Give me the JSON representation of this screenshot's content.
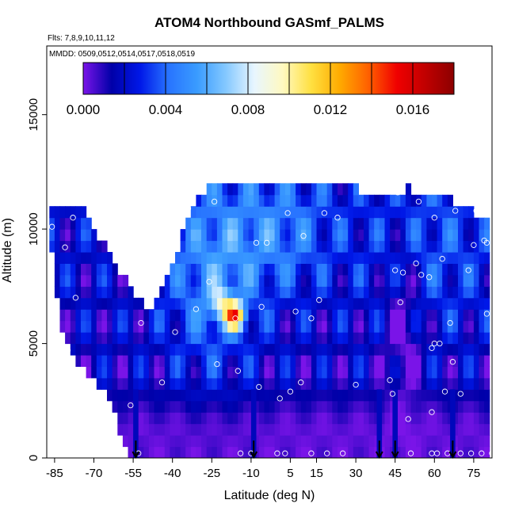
{
  "chart_data": {
    "type": "heatmap",
    "title": "ATOM4 Northbound GASmf_PALMS",
    "flights_label": "Flts: 7,8,9,10,11,12",
    "dates_label": "MMDD: 0509,0512,0514,0517,0518,0519",
    "xlabel": "Latitude (deg N)",
    "ylabel": "Altitude (m)",
    "xlim": [
      -88,
      82
    ],
    "ylim": [
      0,
      18000
    ],
    "x_ticks": [
      -85,
      -70,
      -55,
      -40,
      -25,
      -10,
      5,
      15,
      30,
      45,
      60,
      75
    ],
    "x_tick_labels": [
      "-85",
      "-70",
      "-55",
      "-40",
      "-25",
      "-10",
      "5",
      "15",
      "30",
      "45",
      "60",
      "75"
    ],
    "y_ticks": [
      0,
      5000,
      10000,
      15000
    ],
    "y_tick_labels": [
      "0",
      "5000",
      "10000",
      "15000"
    ],
    "colorbar": {
      "range": [
        0,
        0.018
      ],
      "ticks": [
        0,
        0.004,
        0.008,
        0.012,
        0.016
      ],
      "tick_labels": [
        "0.000",
        "0.004",
        "0.008",
        "0.012",
        "0.016"
      ],
      "colors": [
        "#7a14e8",
        "#0000a8",
        "#0018e8",
        "#2874ff",
        "#3a9cff",
        "#84c8ff",
        "#e8f6ff",
        "#fff9c0",
        "#ffe040",
        "#ffaa00",
        "#ff6000",
        "#f00000",
        "#c00000",
        "#8c0000"
      ]
    },
    "column_lat_step": 2,
    "alt_bins": [
      250,
      750,
      1250,
      1750,
      2250,
      2750,
      3250,
      3750,
      4250,
      4750,
      5250,
      5750,
      6250,
      6750,
      7250,
      7750,
      8250,
      8750,
      9250,
      9750,
      10250,
      10750,
      11250,
      11750
    ],
    "profile_tops": [
      [
        -86,
        10500
      ],
      [
        -80,
        10500
      ],
      [
        -76,
        10500
      ],
      [
        -74,
        10500
      ],
      [
        -70,
        9800
      ],
      [
        -66,
        9000
      ],
      [
        -62,
        8300
      ],
      [
        -58,
        7500
      ],
      [
        -54,
        6800
      ],
      [
        -50,
        6200
      ],
      [
        -44,
        7000
      ],
      [
        -40,
        8200
      ],
      [
        -36,
        9500
      ],
      [
        -30,
        11000
      ],
      [
        -24,
        11800
      ],
      [
        -10,
        11800
      ],
      [
        0,
        11800
      ],
      [
        10,
        11800
      ],
      [
        20,
        11800
      ],
      [
        30,
        11500
      ],
      [
        40,
        11300
      ],
      [
        50,
        11500
      ],
      [
        60,
        11300
      ],
      [
        68,
        10900
      ],
      [
        74,
        10700
      ],
      [
        80,
        10000
      ]
    ],
    "profile_bottoms": [
      [
        -86,
        9500
      ],
      [
        -84,
        7200
      ],
      [
        -82,
        6000
      ],
      [
        -80,
        5200
      ],
      [
        -76,
        4500
      ],
      [
        -72,
        4000
      ],
      [
        -68,
        3500
      ],
      [
        -64,
        3000
      ],
      [
        -60,
        1500
      ],
      [
        -58,
        900
      ],
      [
        -56,
        0
      ],
      [
        -40,
        0
      ],
      [
        20,
        0
      ],
      [
        60,
        0
      ],
      [
        80,
        0
      ]
    ],
    "vertical_profiles_lat": [
      -54,
      -9,
      39,
      45,
      67
    ],
    "points": [
      [
        -86,
        10100
      ],
      [
        -81,
        9200
      ],
      [
        -78,
        10500
      ],
      [
        -80,
        4700
      ],
      [
        -77,
        7000
      ],
      [
        -56,
        2300
      ],
      [
        -53,
        200
      ],
      [
        -52,
        5900
      ],
      [
        -51,
        8500
      ],
      [
        -44,
        3300
      ],
      [
        -43,
        10000
      ],
      [
        -40,
        10300
      ],
      [
        -39,
        5500
      ],
      [
        -34,
        10900
      ],
      [
        -31,
        6500
      ],
      [
        -26,
        7700
      ],
      [
        -24,
        11200
      ],
      [
        -23,
        4100
      ],
      [
        -16,
        6100
      ],
      [
        -15,
        3800
      ],
      [
        -14,
        200
      ],
      [
        -10,
        200
      ],
      [
        -8,
        9400
      ],
      [
        -7,
        3100
      ],
      [
        -6,
        6600
      ],
      [
        -4,
        9400
      ],
      [
        0,
        200
      ],
      [
        1,
        2600
      ],
      [
        3,
        200
      ],
      [
        4,
        10700
      ],
      [
        5,
        2900
      ],
      [
        7,
        6400
      ],
      [
        9,
        3300
      ],
      [
        10,
        9700
      ],
      [
        13,
        6100
      ],
      [
        13,
        200
      ],
      [
        16,
        6900
      ],
      [
        18,
        10700
      ],
      [
        19,
        200
      ],
      [
        23,
        10500
      ],
      [
        25,
        200
      ],
      [
        30,
        3200
      ],
      [
        43,
        3400
      ],
      [
        44,
        2800
      ],
      [
        45,
        8200
      ],
      [
        46,
        11600
      ],
      [
        47,
        6800
      ],
      [
        48,
        8100
      ],
      [
        50,
        1700
      ],
      [
        51,
        200
      ],
      [
        53,
        8500
      ],
      [
        54,
        11200
      ],
      [
        55,
        8000
      ],
      [
        58,
        7900
      ],
      [
        59,
        4800
      ],
      [
        59,
        200
      ],
      [
        59,
        2000
      ],
      [
        60,
        10500
      ],
      [
        60,
        5000
      ],
      [
        61,
        200
      ],
      [
        62,
        5000
      ],
      [
        63,
        8700
      ],
      [
        64,
        2900
      ],
      [
        65,
        200
      ],
      [
        66,
        5900
      ],
      [
        67,
        4200
      ],
      [
        68,
        10800
      ],
      [
        70,
        200
      ],
      [
        70,
        2800
      ],
      [
        73,
        8200
      ],
      [
        74,
        200
      ],
      [
        75,
        9300
      ],
      [
        76,
        10800
      ],
      [
        78,
        200
      ],
      [
        79,
        9500
      ],
      [
        80,
        9400
      ],
      [
        80,
        6300
      ],
      [
        82,
        200
      ]
    ]
  }
}
